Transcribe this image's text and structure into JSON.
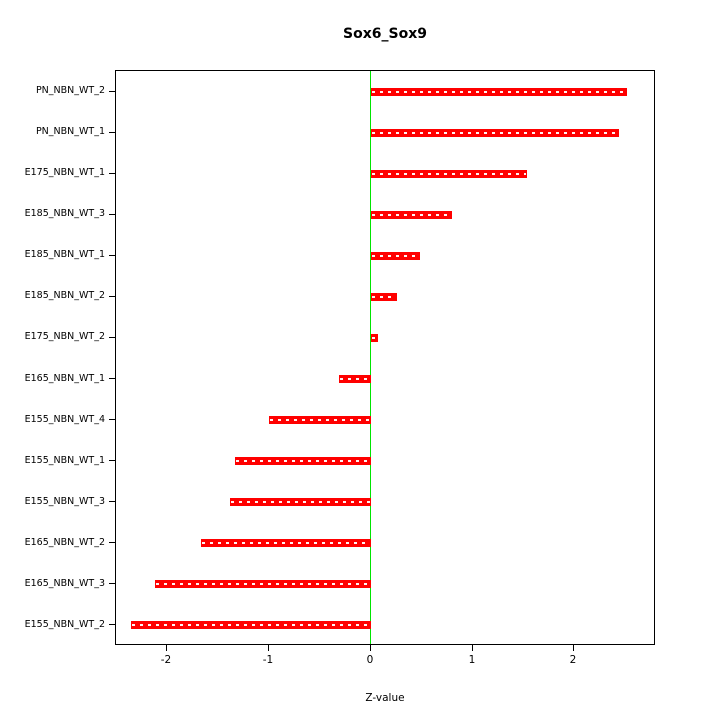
{
  "chart_data": {
    "type": "bar",
    "orientation": "horizontal",
    "title": "Sox6_Sox9",
    "xlabel": "Z-value",
    "categories_top_to_bottom": [
      "PN_NBN_WT_2",
      "PN_NBN_WT_1",
      "E175_NBN_WT_1",
      "E185_NBN_WT_3",
      "E185_NBN_WT_1",
      "E185_NBN_WT_2",
      "E175_NBN_WT_2",
      "E165_NBN_WT_1",
      "E155_NBN_WT_4",
      "E155_NBN_WT_1",
      "E155_NBN_WT_3",
      "E165_NBN_WT_2",
      "E165_NBN_WT_3",
      "E155_NBN_WT_2"
    ],
    "values": [
      2.52,
      2.44,
      1.53,
      0.8,
      0.48,
      0.26,
      0.07,
      -0.31,
      -1.0,
      -1.33,
      -1.38,
      -1.67,
      -2.12,
      -2.35
    ],
    "xlim": [
      -2.5,
      2.8
    ],
    "xticks": [
      -2,
      -1,
      0,
      1,
      2
    ],
    "xtick_labels": [
      "-2",
      "-1",
      "0",
      "1",
      "2"
    ],
    "bar_color": "#ff0000",
    "zero_line_color": "#00e400",
    "axis_color": "#000000",
    "background_color": "#ffffff",
    "grid": false,
    "legend": null
  }
}
